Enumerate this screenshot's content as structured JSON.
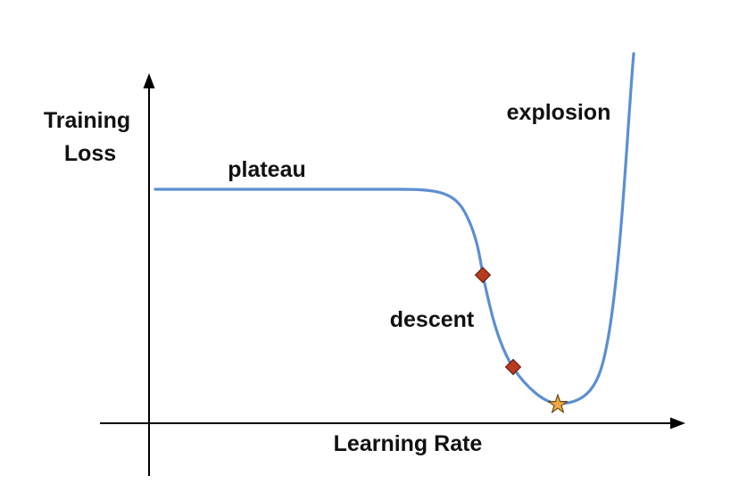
{
  "diagram": {
    "y_axis_label": [
      "Training",
      "Loss"
    ],
    "x_axis_label": "Learning Rate",
    "regions": {
      "plateau": "plateau",
      "descent": "descent",
      "explosion": "explosion"
    },
    "markers": [
      {
        "name": "descent-start-marker",
        "shape": "diamond"
      },
      {
        "name": "descent-end-marker",
        "shape": "diamond"
      },
      {
        "name": "minimum-marker",
        "shape": "star"
      }
    ],
    "colors": {
      "curve": "#5b8fd1",
      "diamond": "#b83a1f",
      "star": "#f0a848",
      "axis": "#000000",
      "text": "#111111"
    }
  }
}
